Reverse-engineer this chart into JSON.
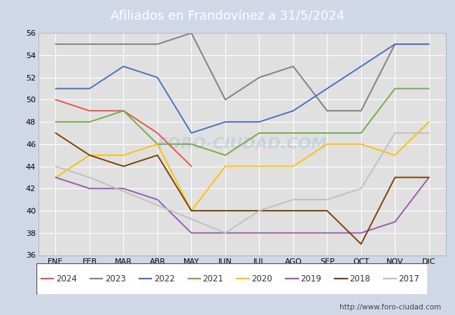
{
  "title": "Afiliados en Frandovínez a 31/5/2024",
  "header_bg": "#5b9bd5",
  "ylim": [
    36,
    56
  ],
  "yticks": [
    36,
    38,
    40,
    42,
    44,
    46,
    48,
    50,
    52,
    54,
    56
  ],
  "months": [
    "ENE",
    "FEB",
    "MAR",
    "ABR",
    "MAY",
    "JUN",
    "JUL",
    "AGO",
    "SEP",
    "OCT",
    "NOV",
    "DIC"
  ],
  "series": {
    "2024": {
      "color": "#e8534a",
      "data": [
        50,
        49,
        49,
        47,
        44,
        null,
        null,
        null,
        null,
        null,
        null,
        null
      ]
    },
    "2023": {
      "color": "#808080",
      "data": [
        55,
        55,
        55,
        55,
        56,
        50,
        52,
        53,
        49,
        49,
        55,
        55
      ]
    },
    "2022": {
      "color": "#4472c4",
      "data": [
        51,
        51,
        53,
        52,
        47,
        48,
        48,
        49,
        51,
        53,
        55,
        55
      ]
    },
    "2021": {
      "color": "#70ad47",
      "data": [
        48,
        48,
        49,
        46,
        46,
        45,
        47,
        47,
        47,
        47,
        51,
        51
      ]
    },
    "2020": {
      "color": "#ffc000",
      "data": [
        43,
        45,
        45,
        46,
        40,
        44,
        44,
        44,
        46,
        46,
        45,
        48
      ]
    },
    "2019": {
      "color": "#9b59b6",
      "data": [
        43,
        42,
        42,
        41,
        38,
        38,
        38,
        38,
        38,
        38,
        39,
        43
      ]
    },
    "2018": {
      "color": "#7b3f00",
      "data": [
        47,
        45,
        44,
        45,
        40,
        40,
        40,
        40,
        40,
        37,
        43,
        43
      ]
    },
    "2017": {
      "color": "#c0c0c0",
      "data": [
        44,
        43,
        null,
        null,
        null,
        38,
        40,
        41,
        41,
        42,
        47,
        47
      ]
    }
  },
  "legend_order": [
    "2024",
    "2023",
    "2022",
    "2021",
    "2020",
    "2019",
    "2018",
    "2017"
  ],
  "footer_text": "http://www.foro-ciudad.com",
  "outer_bg": "#d0d8e8",
  "plot_bg": "#e0e0e0",
  "grid_color": "#ffffff",
  "watermark": "FORO-CIUDAD.COM",
  "watermark_color": "#b8c8d8"
}
